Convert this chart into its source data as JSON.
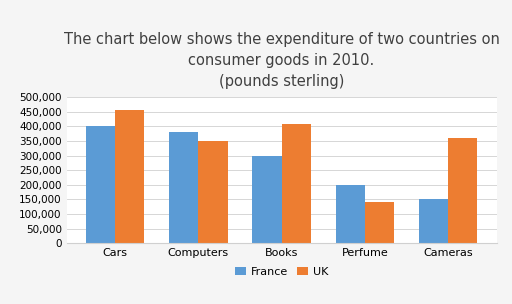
{
  "title_line1": "The chart below shows the expenditure of two countries on",
  "title_line2": "consumer goods in 2010.",
  "title_line3": "(pounds sterling)",
  "categories": [
    "Cars",
    "Computers",
    "Books",
    "Perfume",
    "Cameras"
  ],
  "france_values": [
    400000,
    380000,
    300000,
    200000,
    150000
  ],
  "uk_values": [
    455000,
    350000,
    408000,
    140000,
    360000
  ],
  "france_color": "#5b9bd5",
  "uk_color": "#ed7d31",
  "ylim": [
    0,
    500000
  ],
  "yticks": [
    0,
    50000,
    100000,
    150000,
    200000,
    250000,
    300000,
    350000,
    400000,
    450000,
    500000
  ],
  "legend_labels": [
    "France",
    "UK"
  ],
  "background_color": "#f5f5f5",
  "plot_bg_color": "#ffffff",
  "title_fontsize": 10.5,
  "subtitle_fontsize": 8.5,
  "bar_width": 0.35
}
